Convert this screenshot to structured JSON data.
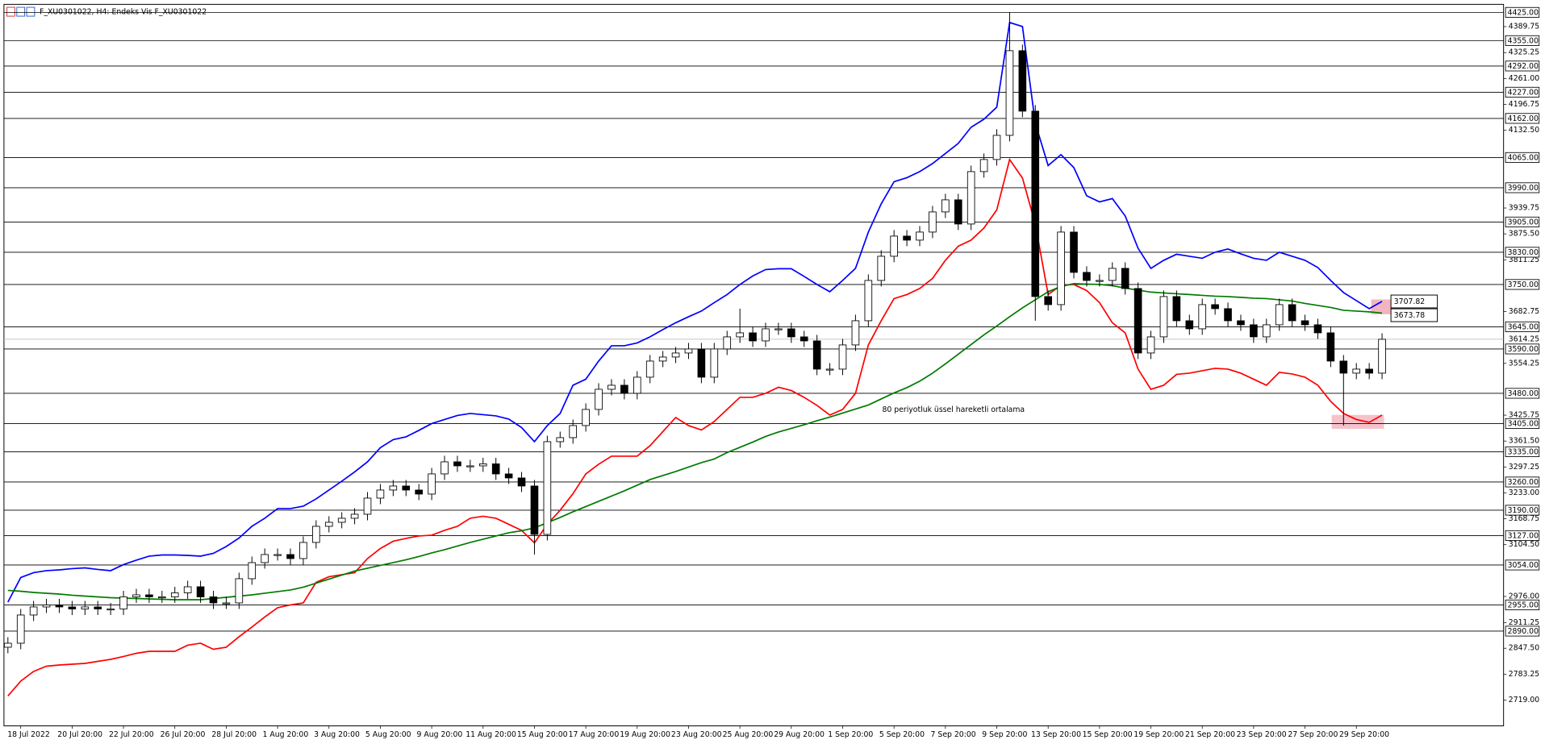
{
  "chart_data": {
    "type": "candlestick",
    "title": "F_XU0301022, H4:  Endeks Vis F_XU0301022",
    "annotation": "80 periyotluk üssel hareketli ortalama",
    "annotation_color": "#008000",
    "ylim": [
      2655,
      4445
    ],
    "categories": [
      null,
      "18 Jul 2022",
      null,
      null,
      null,
      "20 Jul 20:00",
      null,
      null,
      null,
      "22 Jul 20:00",
      null,
      null,
      null,
      "26 Jul 20:00",
      null,
      null,
      null,
      "28 Jul 20:00",
      null,
      null,
      null,
      "1 Aug 20:00",
      null,
      null,
      null,
      "3 Aug 20:00",
      null,
      null,
      null,
      "5 Aug 20:00",
      null,
      null,
      null,
      "9 Aug 20:00",
      null,
      null,
      null,
      "11 Aug 20:00",
      null,
      null,
      null,
      "15 Aug 20:00",
      null,
      null,
      null,
      "17 Aug 20:00",
      null,
      null,
      null,
      "19 Aug 20:00",
      null,
      null,
      null,
      "23 Aug 20:00",
      null,
      null,
      null,
      "25 Aug 20:00",
      null,
      null,
      null,
      "29 Aug 20:00",
      null,
      null,
      null,
      "1 Sep 20:00",
      null,
      null,
      null,
      "5 Sep 20:00",
      null,
      null,
      null,
      "7 Sep 20:00",
      null,
      null,
      null,
      "9 Sep 20:00",
      null,
      null,
      null,
      "13 Sep 20:00",
      null,
      null,
      null,
      "15 Sep 20:00",
      null,
      null,
      null,
      "19 Sep 20:00",
      null,
      null,
      null,
      "21 Sep 20:00",
      null,
      null,
      null,
      "23 Sep 20:00",
      null,
      null,
      null,
      "27 Sep 20:00",
      null,
      null,
      null,
      "29 Sep 20:00",
      null,
      null
    ],
    "open": [
      2850,
      2860,
      2930,
      2950,
      2955,
      2950,
      2945,
      2950,
      2945,
      2945,
      2975,
      2980,
      2975,
      2975,
      2985,
      3000,
      2975,
      2960,
      2960,
      3020,
      3060,
      3080,
      3080,
      3070,
      3110,
      3150,
      3160,
      3170,
      3180,
      3220,
      3240,
      3250,
      3240,
      3230,
      3280,
      3310,
      3300,
      3300,
      3305,
      3280,
      3270,
      3250,
      3130,
      3360,
      3370,
      3400,
      3440,
      3490,
      3500,
      3480,
      3520,
      3560,
      3570,
      3580,
      3590,
      3520,
      3590,
      3620,
      3630,
      3610,
      3640,
      3640,
      3620,
      3610,
      3540,
      3540,
      3600,
      3660,
      3760,
      3820,
      3870,
      3860,
      3880,
      3930,
      3960,
      3900,
      4030,
      4060,
      4120,
      4330,
      4180,
      3720,
      3700,
      3880,
      3780,
      3760,
      3760,
      3790,
      3740,
      3580,
      3620,
      3720,
      3660,
      3640,
      3700,
      3690,
      3660,
      3650,
      3620,
      3650,
      3700,
      3660,
      3650,
      3630,
      3560,
      3530,
      3540,
      3530
    ],
    "high": [
      2875,
      2945,
      2965,
      2970,
      2970,
      2965,
      2965,
      2965,
      2960,
      2990,
      2995,
      2995,
      2990,
      3000,
      3015,
      3015,
      2990,
      2975,
      3035,
      3075,
      3095,
      3095,
      3095,
      3125,
      3165,
      3175,
      3185,
      3195,
      3235,
      3255,
      3265,
      3265,
      3255,
      3295,
      3325,
      3325,
      3315,
      3320,
      3320,
      3295,
      3285,
      3265,
      3375,
      3385,
      3415,
      3455,
      3505,
      3515,
      3515,
      3535,
      3575,
      3585,
      3595,
      3605,
      3605,
      3605,
      3635,
      3690,
      3645,
      3655,
      3655,
      3655,
      3635,
      3625,
      3555,
      3615,
      3675,
      3775,
      3835,
      3885,
      3885,
      3895,
      3945,
      3975,
      3975,
      4045,
      4075,
      4135,
      4425,
      4345,
      4195,
      3735,
      3895,
      3895,
      3795,
      3775,
      3805,
      3805,
      3755,
      3635,
      3735,
      3735,
      3675,
      3715,
      3715,
      3705,
      3675,
      3665,
      3665,
      3715,
      3715,
      3675,
      3665,
      3645,
      3575,
      3555,
      3555,
      3629
    ],
    "low": [
      2835,
      2845,
      2915,
      2935,
      2935,
      2930,
      2930,
      2930,
      2930,
      2930,
      2960,
      2960,
      2960,
      2960,
      2970,
      2960,
      2945,
      2945,
      2945,
      3005,
      3045,
      3065,
      3055,
      3055,
      3095,
      3135,
      3145,
      3155,
      3165,
      3205,
      3225,
      3225,
      3215,
      3215,
      3265,
      3285,
      3285,
      3285,
      3265,
      3255,
      3235,
      3080,
      3115,
      3345,
      3355,
      3385,
      3425,
      3475,
      3465,
      3465,
      3505,
      3545,
      3555,
      3565,
      3505,
      3505,
      3575,
      3605,
      3595,
      3595,
      3625,
      3605,
      3595,
      3525,
      3525,
      3525,
      3585,
      3645,
      3745,
      3805,
      3845,
      3845,
      3865,
      3915,
      3885,
      3885,
      4015,
      4045,
      4105,
      4165,
      3660,
      3685,
      3685,
      3765,
      3745,
      3745,
      3745,
      3725,
      3565,
      3565,
      3605,
      3645,
      3625,
      3625,
      3675,
      3645,
      3635,
      3605,
      3605,
      3635,
      3645,
      3635,
      3615,
      3545,
      3400,
      3515,
      3515,
      3515
    ],
    "close": [
      2860,
      2930,
      2950,
      2955,
      2950,
      2945,
      2950,
      2945,
      2945,
      2975,
      2980,
      2975,
      2975,
      2985,
      3000,
      2975,
      2960,
      2960,
      3020,
      3060,
      3080,
      3080,
      3070,
      3110,
      3150,
      3160,
      3170,
      3180,
      3220,
      3240,
      3250,
      3240,
      3230,
      3280,
      3310,
      3300,
      3300,
      3305,
      3280,
      3270,
      3250,
      3130,
      3360,
      3370,
      3400,
      3440,
      3490,
      3500,
      3480,
      3520,
      3560,
      3570,
      3580,
      3590,
      3520,
      3590,
      3620,
      3630,
      3610,
      3640,
      3640,
      3620,
      3610,
      3540,
      3540,
      3600,
      3660,
      3760,
      3820,
      3870,
      3860,
      3880,
      3930,
      3960,
      3900,
      4030,
      4060,
      4120,
      4330,
      4180,
      3720,
      3700,
      3880,
      3780,
      3760,
      3760,
      3790,
      3740,
      3580,
      3620,
      3720,
      3660,
      3640,
      3700,
      3690,
      3660,
      3650,
      3620,
      3650,
      3700,
      3660,
      3650,
      3630,
      3560,
      3530,
      3540,
      3530,
      3614
    ],
    "series": [
      {
        "color": "#0000ff",
        "values": [
          2962,
          3023,
          3035,
          3040,
          3042,
          3045,
          3047,
          3043,
          3040,
          3055,
          3066,
          3076,
          3079,
          3079,
          3078,
          3076,
          3083,
          3100,
          3121,
          3150,
          3170,
          3194,
          3194,
          3200,
          3218,
          3240,
          3262,
          3285,
          3310,
          3345,
          3365,
          3372,
          3388,
          3405,
          3415,
          3425,
          3430,
          3427,
          3424,
          3416,
          3395,
          3360,
          3400,
          3430,
          3500,
          3515,
          3560,
          3598,
          3598,
          3605,
          3620,
          3638,
          3655,
          3670,
          3684,
          3705,
          3725,
          3750,
          3771,
          3787,
          3789,
          3789,
          3770,
          3750,
          3732,
          3760,
          3790,
          3880,
          3950,
          4005,
          4015,
          4030,
          4050,
          4075,
          4100,
          4140,
          4160,
          4190,
          4400,
          4390,
          4150,
          4045,
          4072,
          4040,
          3970,
          3955,
          3963,
          3920,
          3840,
          3790,
          3810,
          3825,
          3820,
          3815,
          3830,
          3838,
          3826,
          3815,
          3810,
          3830,
          3820,
          3810,
          3792,
          3760,
          3730,
          3710,
          3690,
          3708
        ]
      },
      {
        "color": "#ff0000",
        "values": [
          2729,
          2766,
          2790,
          2803,
          2806,
          2808,
          2810,
          2815,
          2820,
          2827,
          2835,
          2840,
          2840,
          2840,
          2855,
          2860,
          2845,
          2850,
          2876,
          2900,
          2925,
          2948,
          2955,
          2960,
          3011,
          3025,
          3030,
          3035,
          3070,
          3095,
          3113,
          3120,
          3126,
          3128,
          3140,
          3150,
          3170,
          3175,
          3170,
          3155,
          3140,
          3109,
          3155,
          3190,
          3231,
          3280,
          3304,
          3324,
          3324,
          3324,
          3350,
          3385,
          3420,
          3400,
          3389,
          3410,
          3440,
          3470,
          3470,
          3480,
          3495,
          3487,
          3470,
          3450,
          3426,
          3440,
          3480,
          3600,
          3660,
          3715,
          3725,
          3740,
          3765,
          3810,
          3845,
          3860,
          3890,
          3935,
          4060,
          4014,
          3900,
          3725,
          3748,
          3750,
          3735,
          3705,
          3655,
          3630,
          3540,
          3490,
          3500,
          3527,
          3530,
          3536,
          3542,
          3540,
          3530,
          3515,
          3500,
          3532,
          3528,
          3520,
          3500,
          3460,
          3430,
          3415,
          3408,
          3426
        ]
      },
      {
        "color": "#007a00",
        "values": [
          2991,
          2989,
          2986,
          2984,
          2982,
          2979,
          2977,
          2975,
          2973,
          2972,
          2971,
          2970,
          2969,
          2968,
          2968,
          2968,
          2971,
          2974,
          2977,
          2980,
          2984,
          2988,
          2992,
          2999,
          3009,
          3019,
          3029,
          3039,
          3046,
          3053,
          3060,
          3067,
          3075,
          3084,
          3092,
          3101,
          3110,
          3118,
          3126,
          3134,
          3139,
          3146,
          3159,
          3172,
          3186,
          3199,
          3212,
          3225,
          3238,
          3252,
          3266,
          3276,
          3286,
          3297,
          3308,
          3317,
          3333,
          3346,
          3359,
          3373,
          3384,
          3393,
          3402,
          3412,
          3421,
          3431,
          3441,
          3451,
          3466,
          3481,
          3494,
          3510,
          3530,
          3553,
          3577,
          3601,
          3625,
          3647,
          3670,
          3692,
          3712,
          3732,
          3745,
          3752,
          3751,
          3750,
          3747,
          3741,
          3736,
          3731,
          3729,
          3727,
          3725,
          3723,
          3721,
          3720,
          3718,
          3716,
          3715,
          3712,
          3709,
          3703,
          3698,
          3693,
          3686,
          3684,
          3682,
          3679
        ]
      }
    ],
    "yticks": [
      4389.75,
      4325.25,
      {
        "value": 4261,
        "label": "4261.00"
      },
      4196.75,
      {
        "value": 4132.5,
        "label": "4132.50"
      },
      3939.75,
      {
        "value": 3875.5,
        "label": "3875.50"
      },
      3811.25,
      3682.75,
      3554.25,
      3425.75,
      {
        "value": 3361.5,
        "label": "3361.50"
      },
      3297.25,
      {
        "value": 3233,
        "label": "3233.00"
      },
      3168.75,
      {
        "value": 3104.5,
        "label": "3104.50"
      },
      {
        "value": 2976,
        "label": "2976.00"
      },
      2911.25,
      {
        "value": 2847.5,
        "label": "2847.50"
      },
      2783.25,
      {
        "value": 2719,
        "label": "2719.00"
      }
    ],
    "levels": [
      {
        "value": 4425,
        "label": "4425.00"
      },
      {
        "value": 4355,
        "label": "4355.00"
      },
      {
        "value": 4292,
        "label": "4292.00"
      },
      {
        "value": 4227,
        "label": "4227.00"
      },
      {
        "value": 4162,
        "label": "4162.00"
      },
      {
        "value": 4065,
        "label": "4065.00"
      },
      {
        "value": 3990,
        "label": "3990.00"
      },
      {
        "value": 3905,
        "label": "3905.00"
      },
      {
        "value": 3830,
        "label": "3830.00"
      },
      {
        "value": 3750,
        "label": "3750.00"
      },
      {
        "value": 3645,
        "label": "3645.00"
      },
      {
        "value": 3590,
        "label": "3590.00"
      },
      {
        "value": 3480,
        "label": "3480.00"
      },
      {
        "value": 3405,
        "label": "3405.00"
      },
      {
        "value": 3335,
        "label": "3335.00"
      },
      {
        "value": 3260,
        "label": "3260.00"
      },
      {
        "value": 3190,
        "label": "3190.00"
      },
      {
        "value": 3127,
        "label": "3127.00"
      },
      {
        "value": 3054,
        "label": "3054.00"
      },
      {
        "value": 2955,
        "label": "2955.00"
      },
      {
        "value": 2890,
        "label": "2890.00"
      }
    ],
    "last_price": 3614.25,
    "price_labels": [
      3707.82,
      3673.78
    ]
  }
}
